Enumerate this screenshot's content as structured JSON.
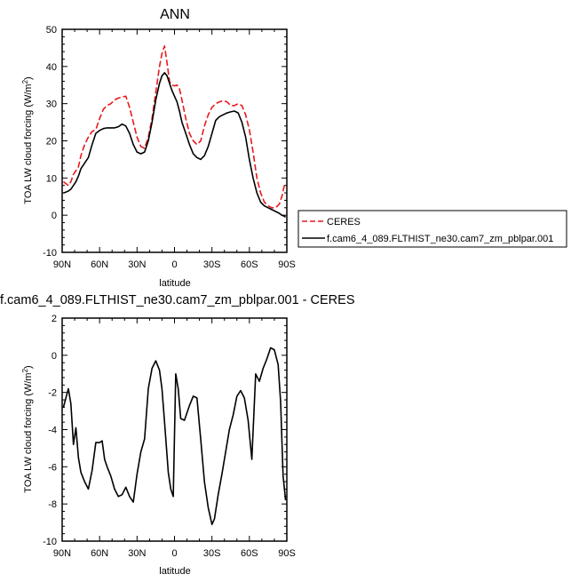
{
  "chart_data": [
    {
      "type": "line",
      "title": "ANN",
      "xlabel": "latitude",
      "ylabel": "TOA LW cloud forcing (W/m²)",
      "ylabel_main": "TOA LW cloud forcing (W/m",
      "ylabel_sup": "2",
      "ylabel_end": ")",
      "xlim": [
        90,
        -90
      ],
      "ylim": [
        -10,
        50
      ],
      "xticks": [
        90,
        60,
        30,
        0,
        -30,
        -60,
        -90
      ],
      "xtick_labels": [
        "90N",
        "60N",
        "30N",
        "0",
        "30S",
        "60S",
        "90S"
      ],
      "yticks": [
        -10,
        0,
        10,
        20,
        30,
        40,
        50
      ],
      "ytick_labels": [
        "-10",
        "0",
        "10",
        "20",
        "30",
        "40",
        "50"
      ],
      "legend_position": "right",
      "series": [
        {
          "name": "CERES",
          "color": "#e8191c",
          "dash": "dashed",
          "x": [
            89,
            87,
            85,
            83,
            81,
            79,
            77,
            75,
            72,
            69,
            66,
            63,
            60,
            57,
            54,
            51,
            48,
            45,
            42,
            39,
            36,
            33,
            30,
            27,
            24,
            21,
            18,
            15,
            12,
            10,
            8,
            6,
            4,
            2,
            0,
            -2,
            -4,
            -6,
            -9,
            -12,
            -15,
            -18,
            -21,
            -24,
            -27,
            -30,
            -33,
            -36,
            -39,
            -42,
            -45,
            -48,
            -51,
            -54,
            -57,
            -60,
            -63,
            -66,
            -69,
            -72,
            -75,
            -78,
            -81,
            -84,
            -86,
            -88,
            -89
          ],
          "y": [
            9,
            8.5,
            8,
            9,
            11,
            12,
            13,
            16,
            19,
            21,
            22.5,
            23,
            26,
            28.5,
            29.5,
            30,
            31,
            31.5,
            31.8,
            32,
            29,
            25,
            21,
            18.5,
            18,
            21,
            26,
            33,
            40,
            43.5,
            45.5,
            41,
            36,
            35,
            34.8,
            35,
            34,
            31,
            26,
            22,
            20,
            19,
            20,
            24,
            27,
            29,
            30,
            30.5,
            30.8,
            30.5,
            29.5,
            29.5,
            30,
            29.5,
            27,
            23,
            17,
            10,
            6,
            3.5,
            2.5,
            2,
            2,
            3,
            5,
            8,
            8.5
          ]
        },
        {
          "name": "f.cam6_4_089.FLTHIST_ne30.cam7_zm_pblpar.001",
          "color": "#000000",
          "dash": "solid",
          "x": [
            89,
            87,
            85,
            83,
            81,
            79,
            77,
            75,
            72,
            69,
            66,
            63,
            60,
            57,
            54,
            51,
            48,
            45,
            42,
            39,
            36,
            33,
            30,
            27,
            24,
            21,
            18,
            15,
            12,
            10,
            8,
            6,
            4,
            2,
            0,
            -2,
            -4,
            -6,
            -9,
            -12,
            -15,
            -18,
            -21,
            -24,
            -27,
            -30,
            -33,
            -36,
            -39,
            -42,
            -45,
            -48,
            -51,
            -54,
            -57,
            -60,
            -63,
            -66,
            -69,
            -72,
            -75,
            -78,
            -81,
            -84,
            -86,
            -88,
            -89
          ],
          "y": [
            6,
            6.2,
            6.5,
            7,
            8,
            9,
            10.5,
            12.5,
            14,
            15.5,
            19,
            22,
            22.8,
            23.3,
            23.5,
            23.5,
            23.5,
            23.8,
            24.5,
            24,
            22,
            19,
            17,
            16.5,
            17,
            20,
            25,
            31,
            35.5,
            37.5,
            38.3,
            37.5,
            35.5,
            33.5,
            32,
            30.5,
            28,
            25,
            22,
            19,
            16.5,
            15.5,
            15,
            16,
            18.5,
            22,
            25.5,
            26.5,
            27,
            27.5,
            27.8,
            28,
            27.5,
            25,
            21,
            15,
            10,
            6,
            3.5,
            2.5,
            2,
            1.5,
            1,
            0.5,
            0,
            -0.3,
            -0.5
          ]
        }
      ]
    },
    {
      "type": "line",
      "title": "f.cam6_4_089.FLTHIST_ne30.cam7_zm_pblpar.001 - CERES",
      "xlabel": "latitude",
      "ylabel": "TOA LW cloud forcing (W/m²)",
      "ylabel_main": "TOA LW cloud forcing (W/m",
      "ylabel_sup": "2",
      "ylabel_end": ")",
      "xlim": [
        90,
        -90
      ],
      "ylim": [
        -10,
        2
      ],
      "xticks": [
        90,
        60,
        30,
        0,
        -30,
        -60,
        -90
      ],
      "xtick_labels": [
        "90N",
        "60N",
        "30N",
        "0",
        "30S",
        "60S",
        "90S"
      ],
      "yticks": [
        -10,
        -8,
        -6,
        -4,
        -2,
        0,
        2
      ],
      "ytick_labels": [
        "-10",
        "-8",
        "-6",
        "-4",
        "-2",
        "0",
        "2"
      ],
      "series": [
        {
          "color": "#000000",
          "dash": "solid",
          "x": [
            89,
            87,
            85,
            83,
            81,
            79,
            77,
            75,
            72,
            69,
            66,
            63,
            60,
            58,
            56,
            54,
            51,
            48,
            45,
            42,
            39,
            36,
            33,
            30,
            27,
            24,
            21,
            18,
            15,
            12,
            10,
            8,
            5,
            3,
            1,
            -1,
            -3,
            -5,
            -8,
            -12,
            -15,
            -18,
            -21,
            -24,
            -27,
            -30,
            -32,
            -35,
            -38,
            -41,
            -44,
            -47,
            -50,
            -53,
            -56,
            -59,
            -62,
            -65,
            -68,
            -71,
            -74,
            -77,
            -80,
            -83,
            -85,
            -87,
            -89
          ],
          "y": [
            -2.8,
            -2.3,
            -1.8,
            -2.6,
            -4.8,
            -3.9,
            -5.5,
            -6.3,
            -6.8,
            -7.2,
            -6.2,
            -4.7,
            -4.7,
            -4.6,
            -5.6,
            -6.0,
            -6.5,
            -7.2,
            -7.6,
            -7.5,
            -7.1,
            -7.6,
            -7.9,
            -6.4,
            -5.2,
            -4.5,
            -1.8,
            -0.7,
            -0.3,
            -0.8,
            -1.8,
            -3.6,
            -6.3,
            -7.2,
            -7.6,
            -1.0,
            -1.8,
            -3.4,
            -3.5,
            -2.7,
            -2.2,
            -2.3,
            -4.5,
            -6.8,
            -8.2,
            -9.1,
            -8.8,
            -7.5,
            -6.4,
            -5.2,
            -4.0,
            -3.2,
            -2.2,
            -1.9,
            -2.3,
            -3.5,
            -5.6,
            -1.0,
            -1.4,
            -0.7,
            -0.2,
            0.4,
            0.3,
            -0.5,
            -2.5,
            -6.5,
            -7.8
          ]
        }
      ]
    }
  ]
}
